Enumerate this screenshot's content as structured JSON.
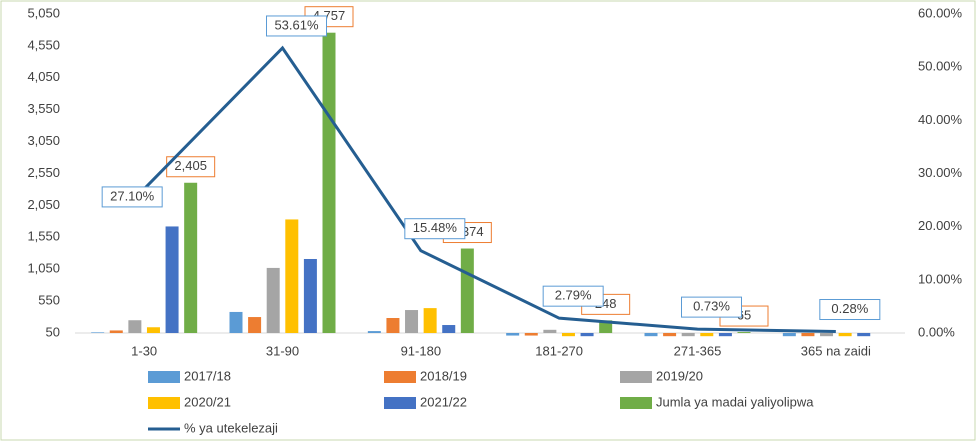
{
  "chart_data": {
    "type": "bar",
    "categories": [
      "1-30",
      "31-90",
      "91-180",
      "181-270",
      "271-365",
      "365 na zaidi"
    ],
    "series": [
      {
        "name": "2017/18",
        "color": "#5b9bd5",
        "values": [
          60,
          380,
          80,
          10,
          0,
          0
        ]
      },
      {
        "name": "2018/19",
        "color": "#ed7d31",
        "values": [
          90,
          300,
          285,
          10,
          0,
          0
        ]
      },
      {
        "name": "2019/20",
        "color": "#a5a5a5",
        "values": [
          250,
          1070,
          410,
          100,
          0,
          0
        ]
      },
      {
        "name": "2020/21",
        "color": "#ffc000",
        "values": [
          140,
          1830,
          440,
          0,
          0,
          0
        ]
      },
      {
        "name": "2021/22",
        "color": "#4472c4",
        "values": [
          1720,
          1210,
          175,
          0,
          0,
          0
        ]
      },
      {
        "name": "Jumla ya madai yaliyolipwa",
        "color": "#70ad47",
        "values": [
          2405,
          4757,
          1374,
          248,
          65,
          null
        ],
        "value_labels": [
          "2,405",
          "4,757",
          "1,374",
          "248",
          "65",
          null
        ]
      },
      {
        "name": "% ya utekelezaji",
        "color": "#255e91",
        "type": "line",
        "axis": "y2",
        "values": [
          27.1,
          53.61,
          15.48,
          2.79,
          0.73,
          0.28
        ],
        "value_labels": [
          "27.10%",
          "53.61%",
          "15.48%",
          "2.79%",
          "0.73%",
          "0.28%"
        ]
      }
    ],
    "ylim": [
      50,
      5050
    ],
    "yticks": [
      50,
      550,
      {
        "value": 1050,
        "label": "1,050"
      },
      {
        "value": 1550,
        "label": "1,550"
      },
      {
        "value": 2050,
        "label": "2,050"
      },
      {
        "value": 2550,
        "label": "2,550"
      },
      {
        "value": 3050,
        "label": "3,050"
      },
      {
        "value": 3550,
        "label": "3,550"
      },
      {
        "value": 4050,
        "label": "4,050"
      },
      {
        "value": 4550,
        "label": "4,550"
      },
      {
        "value": 5050,
        "label": "5,050"
      }
    ],
    "y2lim": [
      0,
      60
    ],
    "y2ticks": [
      {
        "value": 0,
        "label": "0.00%"
      },
      {
        "value": 10,
        "label": "10.00%"
      },
      {
        "value": 20,
        "label": "20.00%"
      },
      {
        "value": 30,
        "label": "30.00%"
      },
      {
        "value": 40,
        "label": "40.00%"
      },
      {
        "value": 50,
        "label": "50.00%"
      },
      {
        "value": 60,
        "label": "60.00%"
      }
    ],
    "grid": false
  }
}
